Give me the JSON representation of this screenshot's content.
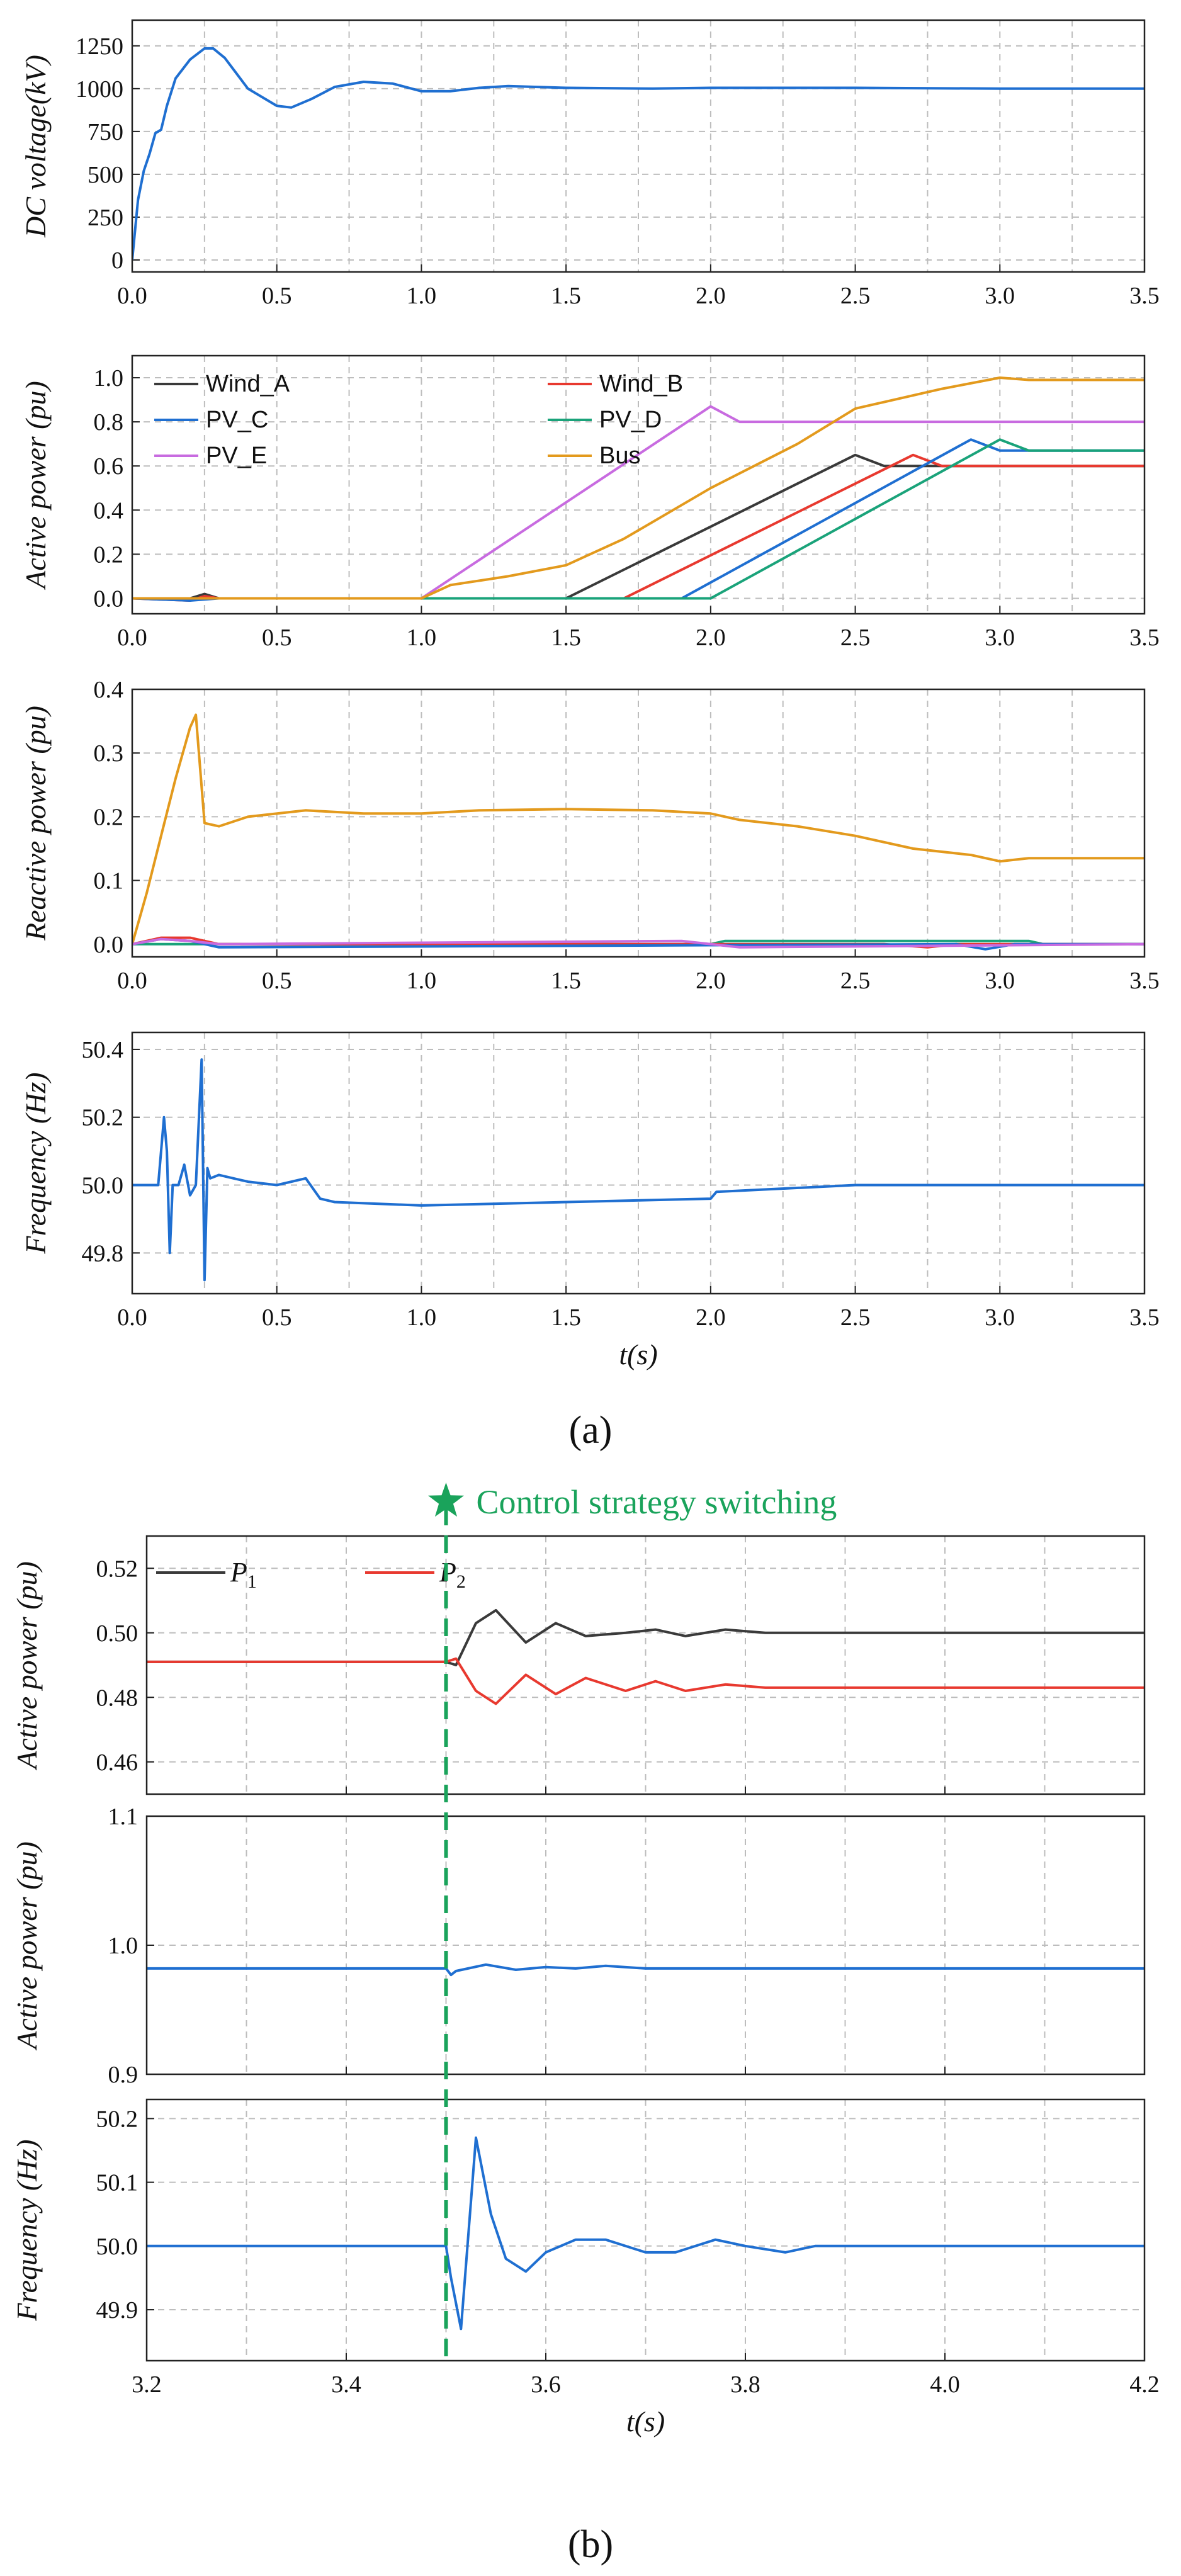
{
  "figure": {
    "caption_a": "(a)",
    "caption_b": "(b)",
    "annotation": "Control strategy switching",
    "annotation_time": 3.5,
    "colors": {
      "blue": "#1f6fd1",
      "black": "#3a3a3a",
      "red": "#e8392f",
      "green": "#1aa37a",
      "violet": "#c86be0",
      "orange": "#e39a1d",
      "annotation": "#1aa35b",
      "grid": "#bdbdbd"
    }
  },
  "chart_data": [
    {
      "id": "a1",
      "type": "line",
      "panel": "a",
      "ylabel": "DC voltage(kV)",
      "xlabel": "",
      "xlim": [
        0,
        3.5
      ],
      "ylim": [
        -70,
        1400
      ],
      "xticks": [
        "0.0",
        "0.5",
        "1.0",
        "1.5",
        "2.0",
        "2.5",
        "3.0",
        "3.5"
      ],
      "yticks": [
        "0",
        "250",
        "500",
        "750",
        "1000",
        "1250"
      ],
      "series": [
        {
          "name": "DC voltage",
          "color": "#1f6fd1",
          "x": [
            0,
            0.02,
            0.04,
            0.06,
            0.08,
            0.1,
            0.12,
            0.15,
            0.2,
            0.25,
            0.28,
            0.32,
            0.4,
            0.5,
            0.55,
            0.62,
            0.7,
            0.8,
            0.9,
            1.0,
            1.1,
            1.2,
            1.3,
            1.5,
            1.8,
            2.0,
            2.5,
            3.0,
            3.5
          ],
          "y": [
            0,
            350,
            520,
            620,
            740,
            760,
            900,
            1060,
            1170,
            1235,
            1235,
            1180,
            1000,
            900,
            890,
            940,
            1010,
            1040,
            1030,
            985,
            985,
            1005,
            1015,
            1005,
            1000,
            1005,
            1005,
            1000,
            1000
          ]
        }
      ]
    },
    {
      "id": "a2",
      "type": "line",
      "panel": "a",
      "ylabel": "Active power (pu)",
      "xlabel": "",
      "xlim": [
        0,
        3.5
      ],
      "ylim": [
        -0.07,
        1.1
      ],
      "xticks": [
        "0.0",
        "0.5",
        "1.0",
        "1.5",
        "2.0",
        "2.5",
        "3.0",
        "3.5"
      ],
      "yticks": [
        "0.0",
        "0.2",
        "0.4",
        "0.6",
        "0.8",
        "1.0"
      ],
      "series": [
        {
          "name": "Wind_A",
          "color": "#3a3a3a",
          "x": [
            0,
            0.2,
            0.25,
            0.3,
            1.5,
            2.5,
            2.6,
            3.5
          ],
          "y": [
            0,
            0,
            0.02,
            0,
            0,
            0.65,
            0.6,
            0.6
          ]
        },
        {
          "name": "Wind_B",
          "color": "#e8392f",
          "x": [
            0,
            0.2,
            0.25,
            0.3,
            1.7,
            2.7,
            2.8,
            3.5
          ],
          "y": [
            0,
            -0.01,
            0.01,
            0,
            0,
            0.65,
            0.6,
            0.6
          ]
        },
        {
          "name": "PV_C",
          "color": "#1f6fd1",
          "x": [
            0,
            0.2,
            0.3,
            1.9,
            2.9,
            3.0,
            3.5
          ],
          "y": [
            0,
            -0.01,
            0,
            0,
            0.72,
            0.67,
            0.67
          ]
        },
        {
          "name": "PV_D",
          "color": "#1aa37a",
          "x": [
            0,
            2.0,
            3.0,
            3.1,
            3.5
          ],
          "y": [
            0,
            0,
            0.72,
            0.67,
            0.67
          ]
        },
        {
          "name": "PV_E",
          "color": "#c86be0",
          "x": [
            0,
            1.0,
            2.0,
            2.1,
            3.5
          ],
          "y": [
            0,
            0,
            0.87,
            0.8,
            0.8
          ]
        },
        {
          "name": "Bus",
          "color": "#e39a1d",
          "x": [
            0,
            1.0,
            1.1,
            1.3,
            1.5,
            1.7,
            2.0,
            2.3,
            2.5,
            2.8,
            3.0,
            3.1,
            3.5
          ],
          "y": [
            0,
            0,
            0.06,
            0.1,
            0.15,
            0.27,
            0.5,
            0.7,
            0.86,
            0.95,
            1.0,
            0.99,
            0.99
          ]
        }
      ]
    },
    {
      "id": "a3",
      "type": "line",
      "panel": "a",
      "ylabel": "Reactive power (pu)",
      "xlabel": "",
      "xlim": [
        0,
        3.5
      ],
      "ylim": [
        -0.02,
        0.4
      ],
      "xticks": [
        "0.0",
        "0.5",
        "1.0",
        "1.5",
        "2.0",
        "2.5",
        "3.0",
        "3.5"
      ],
      "yticks": [
        "0.0",
        "0.1",
        "0.2",
        "0.3",
        "0.4"
      ],
      "series": [
        {
          "name": "Bus",
          "color": "#e39a1d",
          "x": [
            0,
            0.05,
            0.1,
            0.15,
            0.2,
            0.22,
            0.25,
            0.3,
            0.4,
            0.6,
            0.8,
            1.0,
            1.2,
            1.5,
            1.8,
            2.0,
            2.1,
            2.3,
            2.5,
            2.7,
            2.9,
            3.0,
            3.1,
            3.5
          ],
          "y": [
            0,
            0.08,
            0.17,
            0.26,
            0.34,
            0.36,
            0.19,
            0.185,
            0.2,
            0.21,
            0.205,
            0.205,
            0.21,
            0.212,
            0.21,
            0.205,
            0.195,
            0.185,
            0.17,
            0.15,
            0.14,
            0.13,
            0.135,
            0.135
          ]
        },
        {
          "name": "PV_D",
          "color": "#1aa37a",
          "x": [
            0,
            2.0,
            2.05,
            3.1,
            3.15,
            3.5
          ],
          "y": [
            0,
            0,
            0.005,
            0.005,
            0,
            0
          ]
        },
        {
          "name": "Wind_B",
          "color": "#e8392f",
          "x": [
            0,
            0.1,
            0.2,
            0.3,
            2.6,
            2.75,
            2.85,
            3.5
          ],
          "y": [
            0,
            0.01,
            0.01,
            0,
            0,
            -0.005,
            0,
            0
          ]
        },
        {
          "name": "PV_C",
          "color": "#1f6fd1",
          "x": [
            0,
            0.1,
            0.2,
            0.3,
            2.85,
            2.95,
            3.05,
            3.5
          ],
          "y": [
            0,
            0.008,
            0.005,
            -0.005,
            0,
            -0.008,
            0,
            0
          ]
        },
        {
          "name": "PV_E",
          "color": "#c86be0",
          "x": [
            0,
            0.1,
            0.2,
            0.3,
            1.9,
            2.0,
            2.1,
            3.5
          ],
          "y": [
            0,
            0.008,
            0.005,
            0,
            0.005,
            0,
            -0.005,
            0
          ]
        }
      ]
    },
    {
      "id": "a4",
      "type": "line",
      "panel": "a",
      "ylabel": "Frequency (Hz)",
      "xlabel": "t(s)",
      "xlim": [
        0,
        3.5
      ],
      "ylim": [
        49.68,
        50.45
      ],
      "xticks": [
        "0.0",
        "0.5",
        "1.0",
        "1.5",
        "2.0",
        "2.5",
        "3.0",
        "3.5"
      ],
      "yticks": [
        "49.8",
        "50.0",
        "50.2",
        "50.4"
      ],
      "series": [
        {
          "name": "Frequency",
          "color": "#1f6fd1",
          "x": [
            0,
            0.09,
            0.11,
            0.12,
            0.13,
            0.14,
            0.16,
            0.18,
            0.2,
            0.22,
            0.24,
            0.25,
            0.26,
            0.27,
            0.3,
            0.35,
            0.4,
            0.5,
            0.6,
            0.65,
            0.7,
            1.0,
            1.5,
            2.0,
            2.02,
            2.5,
            3.0,
            3.5
          ],
          "y": [
            50.0,
            50.0,
            50.2,
            50.1,
            49.8,
            50.0,
            50.0,
            50.06,
            49.97,
            50.0,
            50.37,
            49.72,
            50.05,
            50.02,
            50.03,
            50.02,
            50.01,
            50.0,
            50.02,
            49.96,
            49.95,
            49.94,
            49.95,
            49.96,
            49.98,
            50.0,
            50.0,
            50.0
          ]
        }
      ]
    },
    {
      "id": "b1",
      "type": "line",
      "panel": "b",
      "ylabel": "Active power (pu)",
      "xlabel": "",
      "xlim": [
        3.2,
        4.2
      ],
      "ylim": [
        0.45,
        0.53
      ],
      "xticks": [],
      "yticks": [
        "0.46",
        "0.48",
        "0.50",
        "0.52"
      ],
      "series": [
        {
          "name": "P",
          "sub": "1",
          "color": "#3a3a3a",
          "x": [
            3.2,
            3.5,
            3.51,
            3.53,
            3.55,
            3.58,
            3.61,
            3.64,
            3.68,
            3.71,
            3.74,
            3.78,
            3.82,
            3.9,
            4.0,
            4.2
          ],
          "y": [
            0.491,
            0.491,
            0.49,
            0.503,
            0.507,
            0.497,
            0.503,
            0.499,
            0.5,
            0.501,
            0.499,
            0.501,
            0.5,
            0.5,
            0.5,
            0.5
          ]
        },
        {
          "name": "P",
          "sub": "2",
          "color": "#e8392f",
          "x": [
            3.2,
            3.5,
            3.51,
            3.53,
            3.55,
            3.58,
            3.61,
            3.64,
            3.68,
            3.71,
            3.74,
            3.78,
            3.82,
            3.9,
            4.0,
            4.2
          ],
          "y": [
            0.491,
            0.491,
            0.492,
            0.482,
            0.478,
            0.487,
            0.481,
            0.486,
            0.482,
            0.485,
            0.482,
            0.484,
            0.483,
            0.483,
            0.483,
            0.483
          ]
        }
      ]
    },
    {
      "id": "b2",
      "type": "line",
      "panel": "b",
      "ylabel": "Active power (pu)",
      "xlabel": "",
      "xlim": [
        3.2,
        4.2
      ],
      "ylim": [
        0.9,
        1.1
      ],
      "xticks": [],
      "yticks": [
        "0.9",
        "1.0",
        "1.1"
      ],
      "series": [
        {
          "name": "Active power",
          "color": "#1f6fd1",
          "x": [
            3.2,
            3.5,
            3.505,
            3.51,
            3.54,
            3.57,
            3.6,
            3.63,
            3.66,
            3.7,
            4.2
          ],
          "y": [
            0.982,
            0.982,
            0.977,
            0.98,
            0.985,
            0.981,
            0.983,
            0.982,
            0.984,
            0.982,
            0.982
          ]
        }
      ]
    },
    {
      "id": "b3",
      "type": "line",
      "panel": "b",
      "ylabel": "Frequency (Hz)",
      "xlabel": "t(s)",
      "xlim": [
        3.2,
        4.2
      ],
      "ylim": [
        49.82,
        50.23
      ],
      "xticks": [
        "3.2",
        "3.4",
        "3.6",
        "3.8",
        "4.0",
        "4.2"
      ],
      "yticks": [
        "49.9",
        "50.0",
        "50.1",
        "50.2"
      ],
      "series": [
        {
          "name": "Frequency",
          "color": "#1f6fd1",
          "x": [
            3.2,
            3.5,
            3.505,
            3.515,
            3.53,
            3.545,
            3.56,
            3.58,
            3.6,
            3.63,
            3.66,
            3.7,
            3.73,
            3.77,
            3.8,
            3.84,
            3.87,
            3.9,
            4.0,
            4.2
          ],
          "y": [
            50.0,
            50.0,
            49.95,
            49.87,
            50.17,
            50.05,
            49.98,
            49.96,
            49.99,
            50.01,
            50.01,
            49.99,
            49.99,
            50.01,
            50.0,
            49.99,
            50.0,
            50.0,
            50.0,
            50.0
          ]
        }
      ]
    }
  ]
}
